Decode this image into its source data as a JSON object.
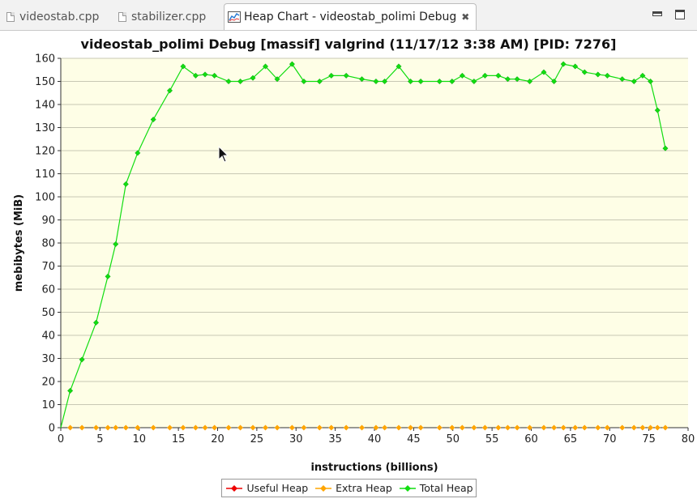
{
  "tabs": [
    {
      "label": "videostab.cpp",
      "icon": "cpp-file-icon",
      "active": false
    },
    {
      "label": "stabilizer.cpp",
      "icon": "cpp-file-icon",
      "active": false
    },
    {
      "label": "Heap Chart - videostab_polimi Debug",
      "icon": "heap-chart-icon",
      "active": true
    }
  ],
  "chart_data": {
    "type": "line",
    "title": "videostab_polimi Debug [massif] valgrind (11/17/12 3:38 AM) [PID: 7276]",
    "xlabel": "instructions (billions)",
    "ylabel": "mebibytes (MiB)",
    "xlim": [
      0,
      80
    ],
    "ylim": [
      0,
      160
    ],
    "x_ticks": [
      0,
      5,
      10,
      15,
      20,
      25,
      30,
      35,
      40,
      45,
      50,
      55,
      60,
      65,
      70,
      75,
      80
    ],
    "y_ticks": [
      0,
      10,
      20,
      30,
      40,
      50,
      60,
      70,
      80,
      90,
      100,
      110,
      120,
      130,
      140,
      150,
      160
    ],
    "grid": "horizontal",
    "background": "#fefee6",
    "legend_position": "bottom",
    "series": [
      {
        "name": "Useful Heap",
        "color": "#ee0000",
        "points": []
      },
      {
        "name": "Extra Heap",
        "color": "#ffa500",
        "points": [
          [
            1.2,
            0
          ],
          [
            2.7,
            0
          ],
          [
            4.5,
            0
          ],
          [
            6,
            0
          ],
          [
            7,
            0
          ],
          [
            8.3,
            0
          ],
          [
            9.8,
            0
          ],
          [
            11.8,
            0
          ],
          [
            13.9,
            0
          ],
          [
            15.6,
            0
          ],
          [
            17.2,
            0
          ],
          [
            18.4,
            0
          ],
          [
            19.6,
            0
          ],
          [
            21.4,
            0
          ],
          [
            22.9,
            0
          ],
          [
            24.5,
            0
          ],
          [
            26.1,
            0
          ],
          [
            27.6,
            0
          ],
          [
            29.5,
            0
          ],
          [
            31,
            0
          ],
          [
            33,
            0
          ],
          [
            34.5,
            0
          ],
          [
            36.4,
            0
          ],
          [
            38.4,
            0
          ],
          [
            40.2,
            0
          ],
          [
            41.3,
            0
          ],
          [
            43.1,
            0
          ],
          [
            44.6,
            0
          ],
          [
            45.9,
            0
          ],
          [
            48.3,
            0
          ],
          [
            49.9,
            0
          ],
          [
            51.2,
            0
          ],
          [
            52.7,
            0
          ],
          [
            54.1,
            0
          ],
          [
            55.8,
            0
          ],
          [
            57,
            0
          ],
          [
            58.2,
            0
          ],
          [
            59.8,
            0
          ],
          [
            61.6,
            0
          ],
          [
            62.9,
            0
          ],
          [
            64.1,
            0
          ],
          [
            65.6,
            0
          ],
          [
            66.8,
            0
          ],
          [
            68.5,
            0
          ],
          [
            69.7,
            0
          ],
          [
            71.6,
            0
          ],
          [
            73.1,
            0
          ],
          [
            74.2,
            0
          ],
          [
            75.2,
            0
          ],
          [
            76.1,
            0
          ],
          [
            77.1,
            0
          ]
        ]
      },
      {
        "name": "Total Heap",
        "color": "#11dd11",
        "points": [
          [
            0,
            0
          ],
          [
            1.2,
            16
          ],
          [
            2.7,
            29.5
          ],
          [
            4.5,
            45.5
          ],
          [
            6,
            65.5
          ],
          [
            7,
            79.5
          ],
          [
            8.3,
            105.5
          ],
          [
            9.8,
            119
          ],
          [
            11.8,
            133.5
          ],
          [
            13.9,
            146
          ],
          [
            15.6,
            156.5
          ],
          [
            17.2,
            152.5
          ],
          [
            18.4,
            153
          ],
          [
            19.6,
            152.5
          ],
          [
            21.4,
            150
          ],
          [
            22.9,
            150
          ],
          [
            24.5,
            151.5
          ],
          [
            26.1,
            156.5
          ],
          [
            27.6,
            151
          ],
          [
            29.5,
            157.5
          ],
          [
            31,
            150
          ],
          [
            33,
            150
          ],
          [
            34.5,
            152.5
          ],
          [
            36.4,
            152.5
          ],
          [
            38.4,
            151
          ],
          [
            40.2,
            150
          ],
          [
            41.3,
            150
          ],
          [
            43.1,
            156.5
          ],
          [
            44.6,
            150
          ],
          [
            45.9,
            150
          ],
          [
            48.3,
            150
          ],
          [
            49.9,
            150
          ],
          [
            51.2,
            152.5
          ],
          [
            52.7,
            150
          ],
          [
            54.1,
            152.5
          ],
          [
            55.8,
            152.5
          ],
          [
            57,
            151
          ],
          [
            58.2,
            151
          ],
          [
            59.8,
            150
          ],
          [
            61.6,
            154
          ],
          [
            62.9,
            150
          ],
          [
            64.1,
            157.5
          ],
          [
            65.6,
            156.5
          ],
          [
            66.8,
            154
          ],
          [
            68.5,
            153
          ],
          [
            69.7,
            152.5
          ],
          [
            71.6,
            151
          ],
          [
            73.1,
            150
          ],
          [
            74.2,
            152.5
          ],
          [
            75.2,
            150
          ],
          [
            76.1,
            137.5
          ],
          [
            77.1,
            121
          ]
        ]
      }
    ]
  }
}
